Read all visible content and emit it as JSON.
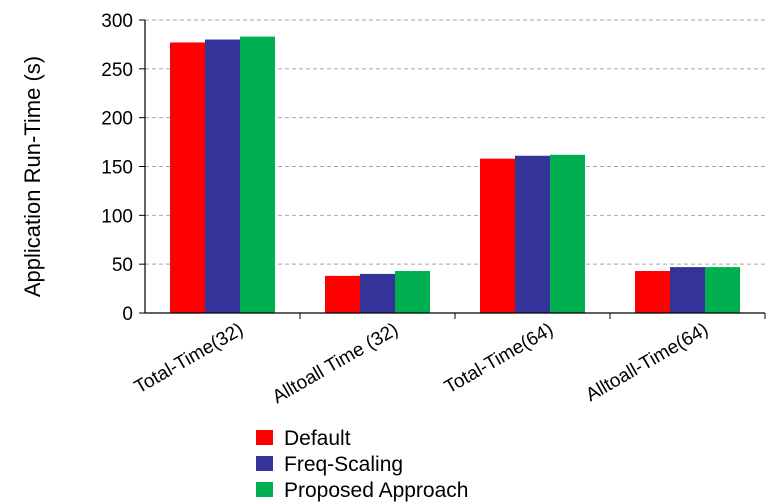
{
  "chart_data": {
    "type": "bar",
    "title": "",
    "xlabel": "",
    "ylabel": "Application Run-Time (s)",
    "ylim": [
      0,
      300
    ],
    "yticks": [
      0,
      50,
      100,
      150,
      200,
      250,
      300
    ],
    "grid": "horizontal dashed",
    "legend_position": "bottom",
    "categories": [
      "Total-Time(32)",
      "Alltoall Time (32)",
      "Total-Time(64)",
      "Alltoall-Time(64)"
    ],
    "series": [
      {
        "name": "Default",
        "color": "#ff0000",
        "values": [
          277,
          38,
          158,
          43
        ]
      },
      {
        "name": "Freq-Scaling",
        "color": "#333399",
        "values": [
          280,
          40,
          161,
          47
        ]
      },
      {
        "name": "Proposed Approach",
        "color": "#00b050",
        "values": [
          283,
          43,
          162,
          47
        ]
      }
    ]
  }
}
